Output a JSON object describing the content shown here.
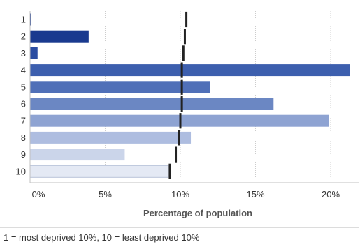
{
  "chart_data": {
    "type": "bar",
    "orientation": "horizontal",
    "categories": [
      "1",
      "2",
      "3",
      "4",
      "5",
      "6",
      "7",
      "8",
      "9",
      "10"
    ],
    "values": [
      0.05,
      3.9,
      0.5,
      21.3,
      12.0,
      16.2,
      19.9,
      10.7,
      6.3,
      9.2
    ],
    "reference_values": [
      10.4,
      10.3,
      10.2,
      10.1,
      10.1,
      10.1,
      10.0,
      9.9,
      9.7,
      9.3
    ],
    "bar_colors": [
      "#1a3a8f",
      "#1a3a8f",
      "#2b4da2",
      "#3d5fae",
      "#5070b8",
      "#6b87c3",
      "#8ea3d2",
      "#aebde0",
      "#cbd5ea",
      "#e4e9f4"
    ],
    "reference_color": "#222222",
    "xlabel": "Percentage of population",
    "ylabel": "",
    "xlim": [
      0,
      22
    ],
    "xticks": [
      0,
      5,
      10,
      15,
      20
    ],
    "xtick_labels": [
      "0%",
      "5%",
      "10%",
      "15%",
      "20%"
    ],
    "grid": "vertical dotted",
    "legend": "none"
  },
  "footnote": "1 = most deprived 10%, 10 = least deprived 10%"
}
